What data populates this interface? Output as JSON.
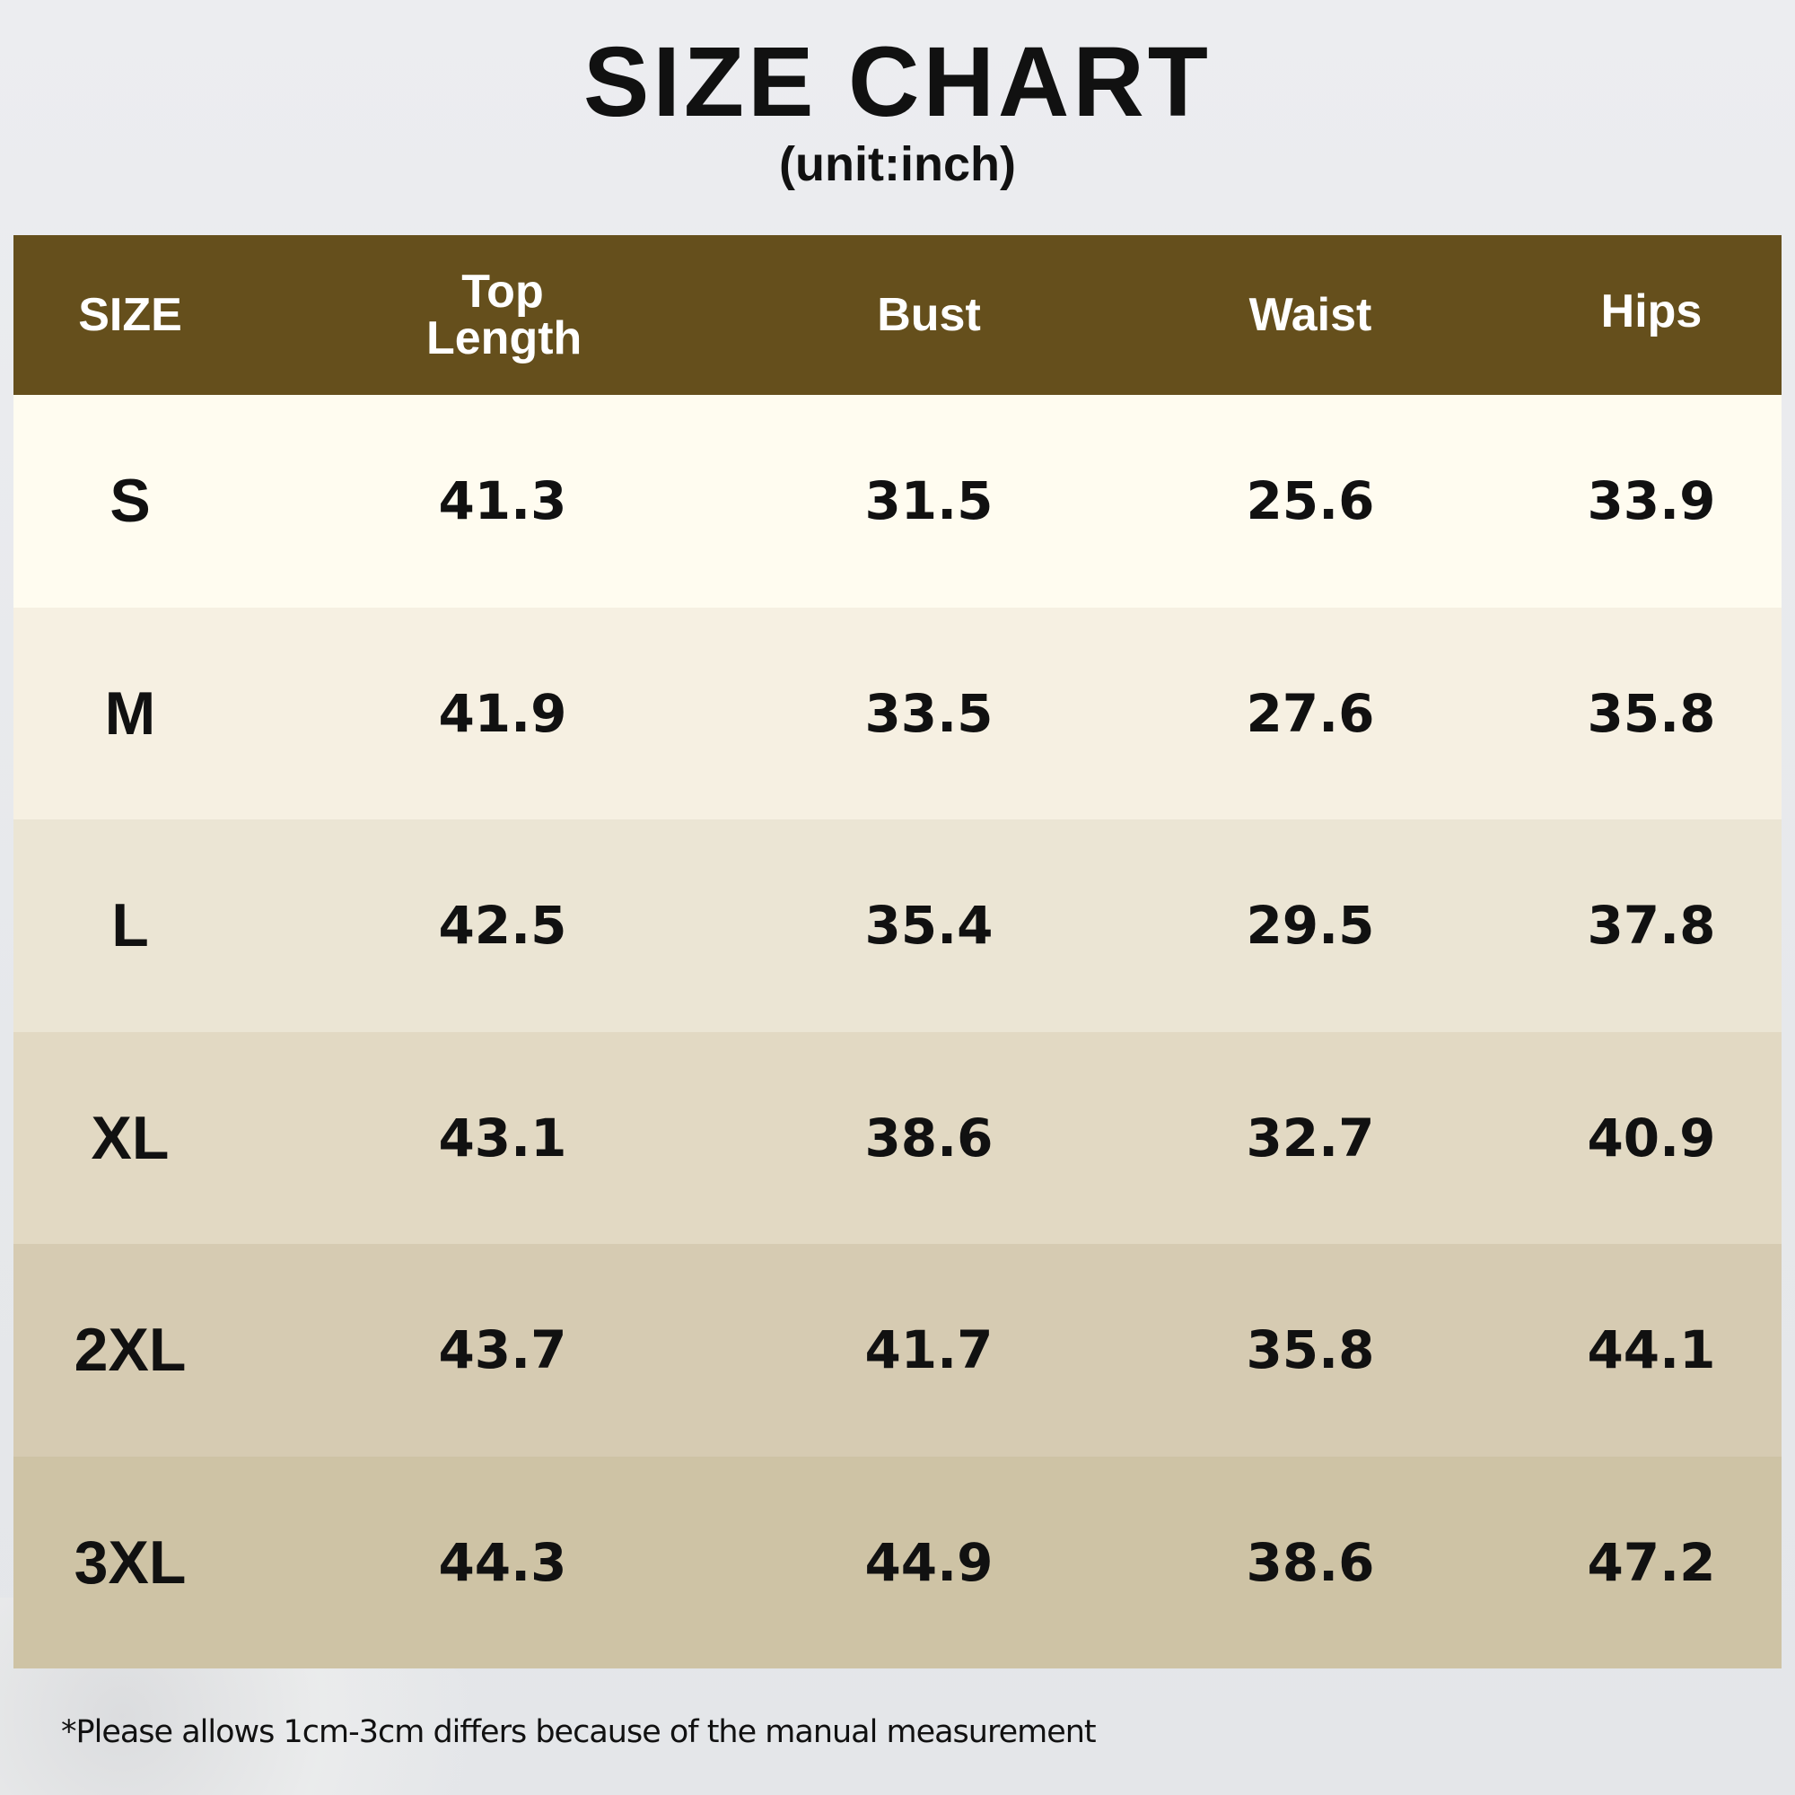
{
  "title": "SIZE CHART",
  "unit": "(unit:inch)",
  "headers": [
    "SIZE",
    "Top Length",
    "Bust",
    "Waist",
    "Hips"
  ],
  "row_colors": [
    "#fffcf0",
    "#f6f0e2",
    "#ebe5d4",
    "#e2d9c3",
    "#d6cbb2",
    "#cec3a5"
  ],
  "header_color": "#654f1c",
  "rows": [
    [
      "S",
      "41.3",
      "31.5",
      "25.6",
      "33.9"
    ],
    [
      "M",
      "41.9",
      "33.5",
      "27.6",
      "35.8"
    ],
    [
      "L",
      "42.5",
      "35.4",
      "29.5",
      "37.8"
    ],
    [
      "XL",
      "43.1",
      "38.6",
      "32.7",
      "40.9"
    ],
    [
      "2XL",
      "43.7",
      "41.7",
      "35.8",
      "44.1"
    ],
    [
      "3XL",
      "44.3",
      "44.9",
      "38.6",
      "47.2"
    ]
  ],
  "note": "*Please allows 1cm-3cm differs because of the manual measurement"
}
